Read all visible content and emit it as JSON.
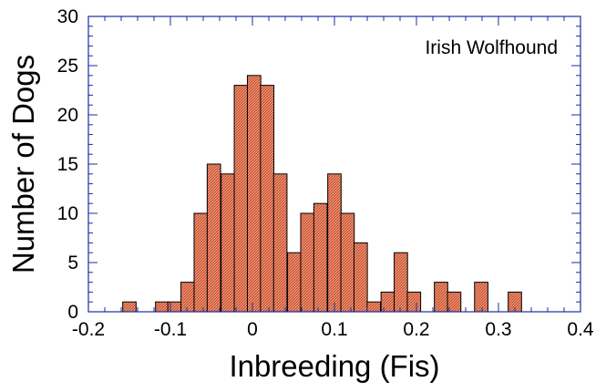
{
  "chart_data": {
    "type": "bar",
    "title": "",
    "annotation": "Irish Wolfhound",
    "xlabel": "Inbreeding (Fis)",
    "ylabel": "Number of Dogs",
    "xlim": [
      -0.2,
      0.4
    ],
    "ylim": [
      0,
      30
    ],
    "x_ticks": [
      "-0.2",
      "-0.1",
      "0",
      "0.1",
      "0.2",
      "0.3",
      "0.4"
    ],
    "y_ticks": [
      "0",
      "5",
      "10",
      "15",
      "20",
      "25",
      "30"
    ],
    "x_tick_values": [
      -0.2,
      -0.1,
      0,
      0.1,
      0.2,
      0.3,
      0.4
    ],
    "y_tick_values": [
      0,
      5,
      10,
      15,
      20,
      25,
      30
    ],
    "bin_width": 0.0163,
    "bins": [
      {
        "x": -0.15,
        "count": 1
      },
      {
        "x": -0.11,
        "count": 1
      },
      {
        "x": -0.095,
        "count": 1
      },
      {
        "x": -0.079,
        "count": 3
      },
      {
        "x": -0.063,
        "count": 10
      },
      {
        "x": -0.047,
        "count": 15
      },
      {
        "x": -0.03,
        "count": 14
      },
      {
        "x": -0.014,
        "count": 23
      },
      {
        "x": 0.002,
        "count": 24
      },
      {
        "x": 0.018,
        "count": 23
      },
      {
        "x": 0.034,
        "count": 14
      },
      {
        "x": 0.051,
        "count": 6
      },
      {
        "x": 0.067,
        "count": 10
      },
      {
        "x": 0.083,
        "count": 11
      },
      {
        "x": 0.1,
        "count": 14
      },
      {
        "x": 0.116,
        "count": 10
      },
      {
        "x": 0.132,
        "count": 7
      },
      {
        "x": 0.148,
        "count": 1
      },
      {
        "x": 0.165,
        "count": 2
      },
      {
        "x": 0.181,
        "count": 6
      },
      {
        "x": 0.197,
        "count": 2
      },
      {
        "x": 0.23,
        "count": 3
      },
      {
        "x": 0.246,
        "count": 2
      },
      {
        "x": 0.279,
        "count": 3
      },
      {
        "x": 0.32,
        "count": 2
      }
    ],
    "colors": {
      "bar_fill": "#f28e6c",
      "bar_hatch": "#a33a22",
      "bar_stroke": "#000000",
      "axis": "#1a2fa0"
    }
  }
}
